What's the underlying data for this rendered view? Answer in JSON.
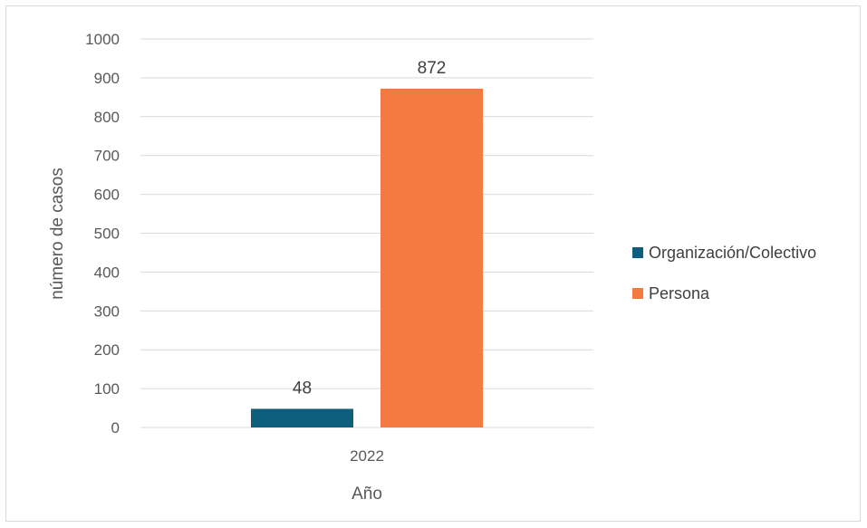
{
  "chart_data": {
    "type": "bar",
    "categories": [
      "2022"
    ],
    "series": [
      {
        "name": "Organización/Colectivo",
        "values": [
          48
        ],
        "color": "#0e5f7e"
      },
      {
        "name": "Persona",
        "values": [
          872
        ],
        "color": "#f47a42"
      }
    ],
    "xlabel": "Año",
    "ylabel": "número de casos",
    "ylim": [
      0,
      1000
    ],
    "yticks": [
      0,
      100,
      200,
      300,
      400,
      500,
      600,
      700,
      800,
      900,
      1000
    ],
    "grid": true,
    "legend_position": "right"
  }
}
